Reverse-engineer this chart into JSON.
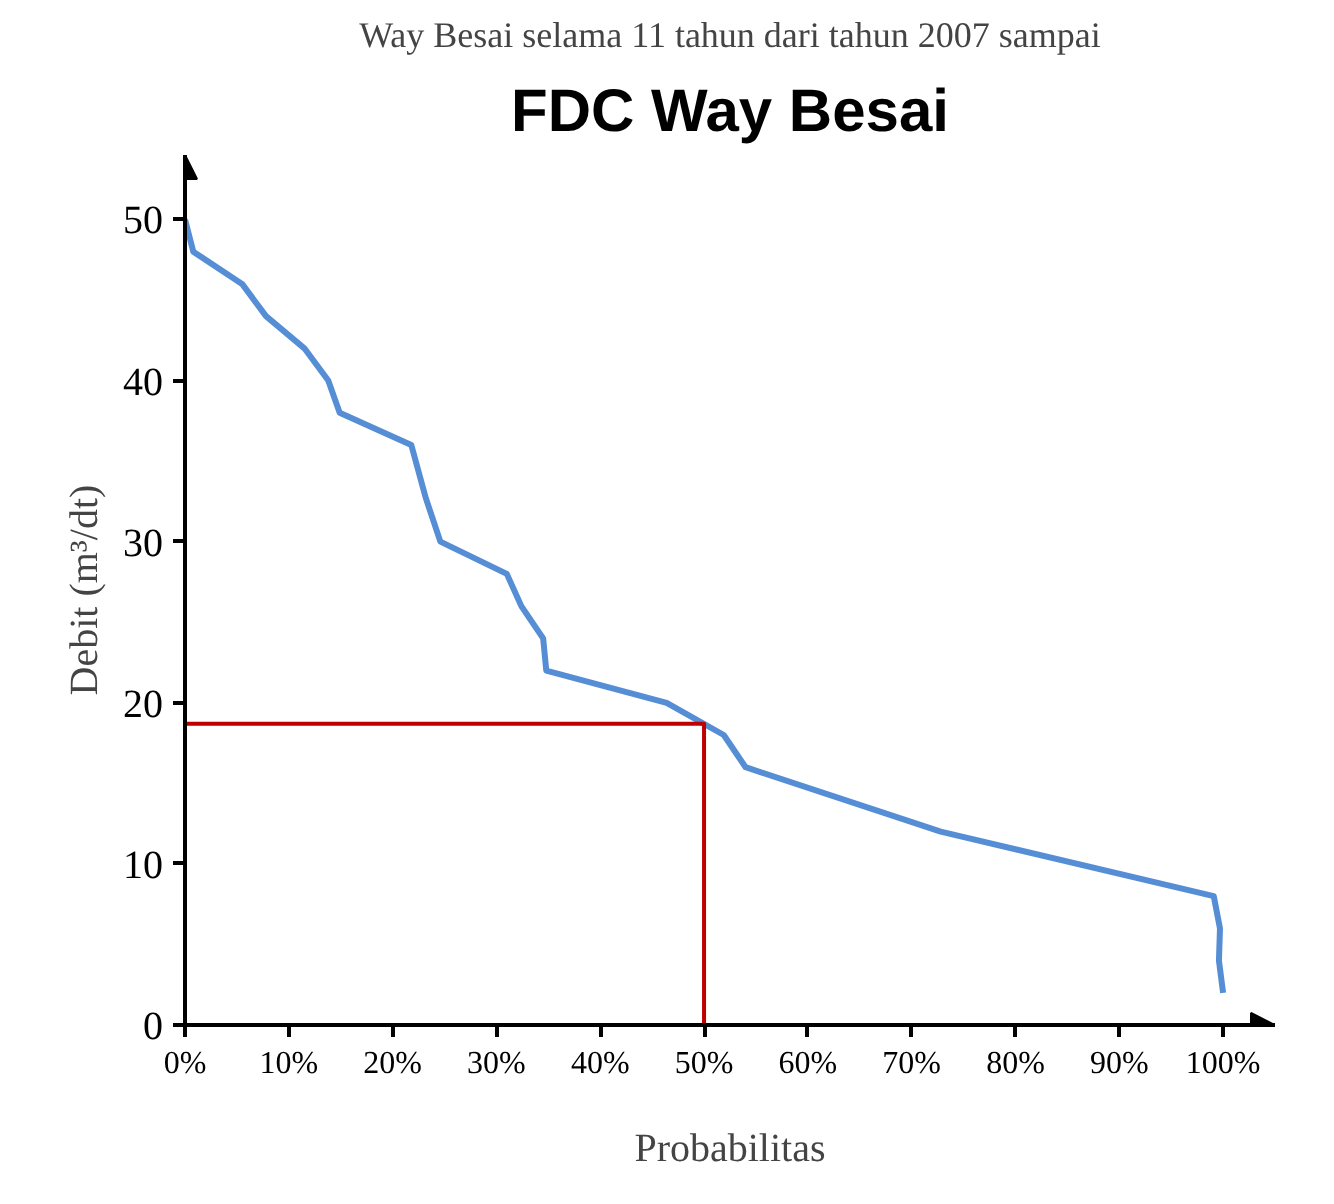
{
  "chart_data": {
    "type": "line",
    "title": "FDC Way Besai",
    "xlabel": "Probabilitas",
    "ylabel": "Debit (m³/dt)",
    "annotations": [
      "Way Besai selama 11 tahun dari tahun 2007 sampai"
    ],
    "series": [
      {
        "color": "#558ed5",
        "x": [
          0,
          0.8,
          5.5,
          7.8,
          11.5,
          13.8,
          14.9,
          21.8,
          23.2,
          24.6,
          31,
          32.4,
          34.5,
          34.8,
          46.4,
          51.9,
          54,
          72.8,
          99.1,
          99.7,
          99.6,
          100
        ],
        "values": [
          50,
          48,
          46,
          44,
          42,
          40,
          38,
          36,
          32.7,
          30,
          28,
          26,
          24,
          22,
          20,
          18,
          16,
          12,
          8,
          6,
          4,
          2
        ]
      },
      {
        "color": "#c00000",
        "x": [
          0,
          50,
          50
        ],
        "values": [
          18.7,
          18.7,
          0
        ]
      }
    ],
    "xlim": [
      0,
      105
    ],
    "ylim": [
      0,
      54
    ],
    "xticks": [
      {
        "value": 0,
        "label": "0%"
      },
      {
        "value": 10,
        "label": "10%"
      },
      {
        "value": 20,
        "label": "20%"
      },
      {
        "value": 30,
        "label": "30%"
      },
      {
        "value": 40,
        "label": "40%"
      },
      {
        "value": 50,
        "label": "50%"
      },
      {
        "value": 60,
        "label": "60%"
      },
      {
        "value": 70,
        "label": "70%"
      },
      {
        "value": 80,
        "label": "80%"
      },
      {
        "value": 90,
        "label": "90%"
      },
      {
        "value": 100,
        "label": "100%"
      }
    ],
    "yticks": [
      0,
      10,
      20,
      30,
      40,
      50
    ],
    "grid": false,
    "marker": "none",
    "line_style": "solid"
  }
}
